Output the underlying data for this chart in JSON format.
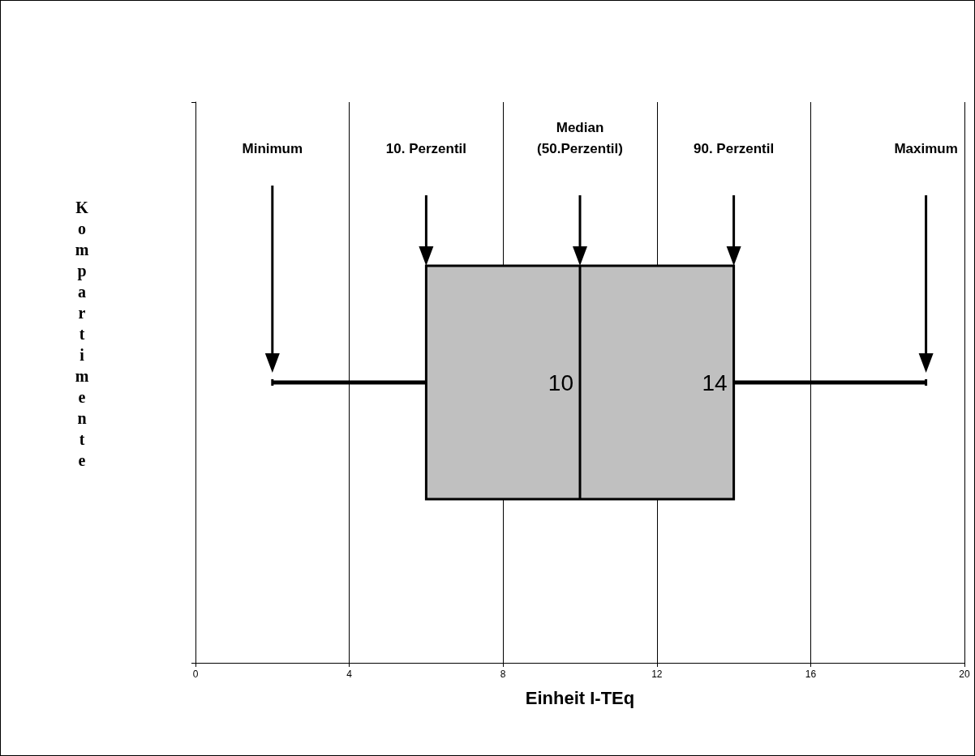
{
  "chart_data": {
    "type": "box",
    "orientation": "horizontal",
    "categories": [
      null
    ],
    "boxes": [
      {
        "low": 2,
        "q1": 6,
        "median": 10,
        "q3": 14,
        "high": 19
      }
    ],
    "color": "#c0c0c0",
    "xlabel": "Einheit I-TEq",
    "ylabel": "Kompartimente",
    "xlim": [
      0,
      20
    ],
    "xticks": [
      0,
      4,
      8,
      12,
      16,
      20
    ],
    "grid": "x",
    "annotations": [
      "Minimum",
      "10. Perzentil",
      "Median\n(50.Perzentil)",
      "90. Perzentil",
      "Maximum",
      "10",
      "14"
    ]
  }
}
